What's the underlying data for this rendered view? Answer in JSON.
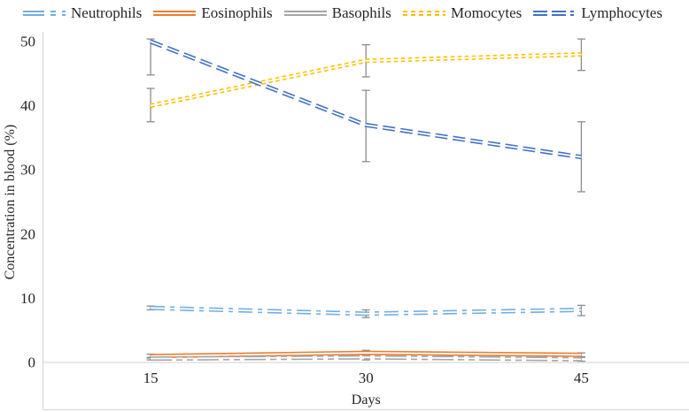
{
  "figure": {
    "background": "#ffffff",
    "bottom_border_color": "#d9d9d9"
  },
  "chart_data": {
    "type": "line",
    "title": "",
    "xlabel": "Days",
    "ylabel": "Concentration in blood (%)",
    "categories": [
      "15",
      "30",
      "45"
    ],
    "ylim": [
      0,
      50
    ],
    "yticks": [
      0,
      10,
      20,
      30,
      40,
      50
    ],
    "grid": false,
    "legend_position": "top",
    "axis_color": "#d9d9d9",
    "errorbar_color": "#8c8c8c",
    "text_color": "#262626",
    "line_style": "double-line",
    "series": [
      {
        "name": "Neutrophils",
        "color": "#74aee0",
        "dash": "16 6 5 6",
        "legend_dash": "24 7 6 7",
        "values": [
          8.5,
          7.6,
          8.2
        ],
        "err_low": [
          8.2,
          7.0,
          7.3
        ],
        "err_high": [
          8.8,
          8.2,
          8.9
        ]
      },
      {
        "name": "Eosinophils",
        "color": "#ed7d31",
        "dash": "",
        "legend_dash": "",
        "values": [
          1.0,
          1.5,
          1.2
        ],
        "err_low": [
          0.7,
          1.1,
          0.9
        ],
        "err_high": [
          1.3,
          1.9,
          1.5
        ]
      },
      {
        "name": "Basophils",
        "color": "#a6a6a6",
        "dash": "24 5 7 5 7 5",
        "legend_dash": "",
        "values": [
          0.6,
          0.8,
          0.5
        ],
        "err_low": [
          0.4,
          0.4,
          0.2
        ],
        "err_high": [
          0.8,
          1.2,
          0.8
        ]
      },
      {
        "name": "Momocytes",
        "color": "#ffc000",
        "dash": "4.5 3.5",
        "legend_dash": "5 4",
        "values": [
          40,
          47,
          48
        ],
        "err_low": [
          37.5,
          44.5,
          45.5
        ],
        "err_high": [
          42.7,
          49.5,
          50.4
        ]
      },
      {
        "name": "Lymphocytes",
        "color": "#4472c4",
        "dash": "14 6",
        "legend_dash": "16 5 16 5 4 5",
        "values": [
          50,
          37,
          32
        ],
        "err_low": [
          44.8,
          31.3,
          26.6
        ],
        "err_high": [
          50.4,
          42.4,
          37.5
        ]
      }
    ]
  }
}
